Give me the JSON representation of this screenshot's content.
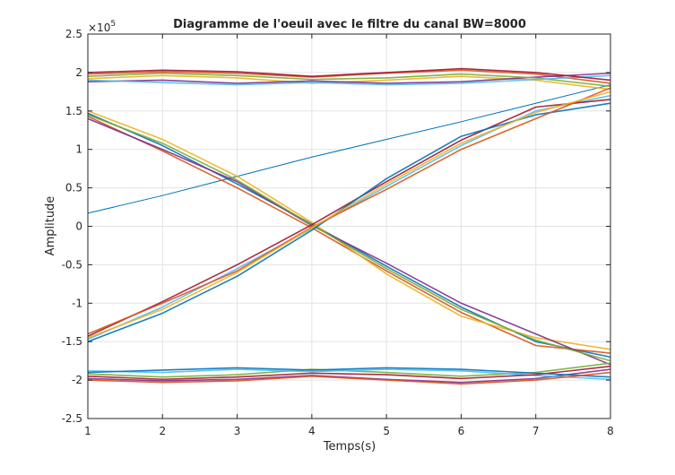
{
  "chart_data": {
    "type": "line",
    "title": "Diagramme de l'oeuil avec le filtre du canal BW=8000",
    "xlabel": "Temps(s)",
    "ylabel": "Amplitude",
    "xlim": [
      1,
      8
    ],
    "ylim": [
      -250000,
      250000
    ],
    "x_ticks": [
      "1",
      "2",
      "3",
      "4",
      "5",
      "6",
      "7",
      "8"
    ],
    "y_ticks": [
      "-2.5",
      "-2",
      "-1.5",
      "-1",
      "-0.5",
      "0",
      "0.5",
      "1",
      "1.5",
      "2",
      "2.5"
    ],
    "y_exponent_label": "×10",
    "y_exponent_power": "5",
    "grid": true,
    "x": [
      1,
      2,
      3,
      4,
      5,
      6,
      7,
      8
    ],
    "series": [
      {
        "values": [
          17000,
          40000,
          65000,
          90000,
          113000,
          136000,
          160000,
          184000
        ]
      },
      {
        "values": [
          198000,
          201000,
          199000,
          194000,
          199000,
          203000,
          198000,
          186000
        ]
      },
      {
        "values": [
          192000,
          196000,
          193000,
          186000,
          190000,
          195000,
          190000,
          178000
        ]
      },
      {
        "values": [
          188000,
          190000,
          186000,
          189000,
          186000,
          188000,
          194000,
          199000
        ]
      },
      {
        "values": [
          195000,
          199000,
          196000,
          191000,
          193000,
          198000,
          193000,
          182000
        ]
      },
      {
        "values": [
          190000,
          187000,
          184000,
          187000,
          184000,
          186000,
          191000,
          196000
        ]
      },
      {
        "values": [
          200000,
          203000,
          201000,
          195000,
          200000,
          205000,
          200000,
          190000
        ]
      },
      {
        "values": [
          147000,
          105000,
          55000,
          3000,
          -52000,
          -105000,
          -150000,
          -170000
        ]
      },
      {
        "values": [
          143000,
          98000,
          50000,
          -2000,
          -58000,
          -112000,
          -155000,
          -165000
        ]
      },
      {
        "values": [
          150000,
          113000,
          65000,
          5000,
          -62000,
          -117000,
          -145000,
          -160000
        ]
      },
      {
        "values": [
          140000,
          100000,
          58000,
          1000,
          -48000,
          -100000,
          -140000,
          -180000
        ]
      },
      {
        "values": [
          145000,
          108000,
          60000,
          2000,
          -55000,
          -108000,
          -148000,
          -175000
        ]
      },
      {
        "values": [
          -147000,
          -105000,
          -55000,
          -3000,
          52000,
          105000,
          150000,
          170000
        ]
      },
      {
        "values": [
          -143000,
          -98000,
          -50000,
          2000,
          58000,
          112000,
          155000,
          165000
        ]
      },
      {
        "values": [
          -150000,
          -113000,
          -65000,
          -5000,
          62000,
          117000,
          145000,
          160000
        ]
      },
      {
        "values": [
          -140000,
          -100000,
          -58000,
          -1000,
          48000,
          100000,
          140000,
          180000
        ]
      },
      {
        "values": [
          -145000,
          -108000,
          -60000,
          -2000,
          55000,
          108000,
          148000,
          175000
        ]
      },
      {
        "values": [
          -198000,
          -201000,
          -199000,
          -194000,
          -199000,
          -203000,
          -198000,
          -186000
        ]
      },
      {
        "values": [
          -192000,
          -196000,
          -193000,
          -186000,
          -190000,
          -195000,
          -190000,
          -178000
        ]
      },
      {
        "values": [
          -188000,
          -190000,
          -186000,
          -189000,
          -186000,
          -188000,
          -194000,
          -199000
        ]
      },
      {
        "values": [
          -195000,
          -199000,
          -196000,
          -191000,
          -193000,
          -198000,
          -193000,
          -182000
        ]
      },
      {
        "values": [
          -190000,
          -187000,
          -184000,
          -187000,
          -184000,
          -186000,
          -191000,
          -196000
        ]
      },
      {
        "values": [
          -200000,
          -203000,
          -201000,
          -195000,
          -200000,
          -205000,
          -200000,
          -190000
        ]
      }
    ],
    "colors": [
      "#0072BD",
      "#D95319",
      "#EDB120",
      "#7E2F8E",
      "#77AC30",
      "#4DBEEE",
      "#A2142F"
    ]
  }
}
